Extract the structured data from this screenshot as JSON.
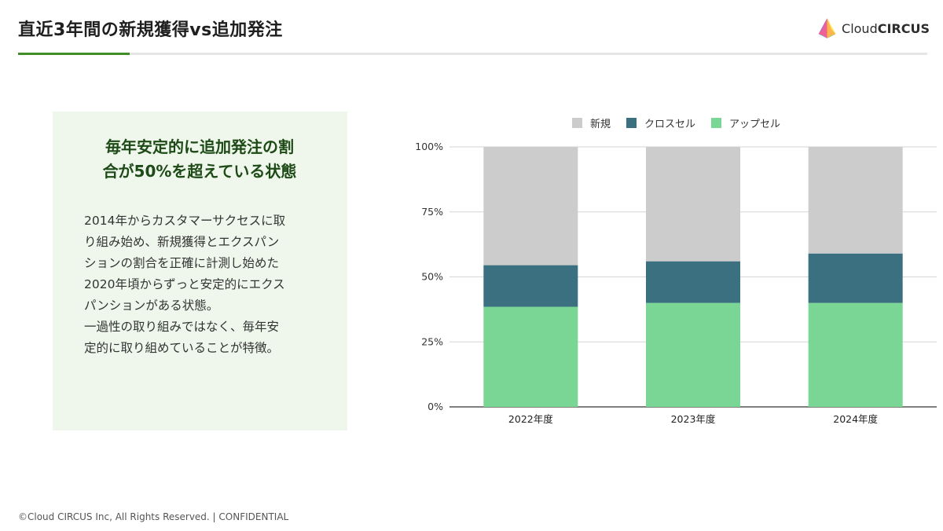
{
  "header": {
    "title": "直近3年間の新規獲得vs追加発注",
    "logo_light": "Cloud",
    "logo_bold": "CIRCUS"
  },
  "panel": {
    "heading": "毎年安定的に追加発注の割\n合が50%を超えている状態",
    "body": "2014年からカスタマーサクセスに取\nり組み始め、新規獲得とエクスパン\nションの割合を正確に計測し始めた\n2020年頃からずっと安定的にエクス\nパンションがある状態。\n一過性の取り組みではなく、毎年安\n定的に取り組めていることが特徴。"
  },
  "footer": {
    "text": "©Cloud CIRCUS Inc, All Rights Reserved. | CONFIDENTIAL"
  },
  "colors": {
    "new": "#cccccc",
    "cross_sell": "#3a7080",
    "up_sell": "#7ad694",
    "accent": "#3f8e2a"
  },
  "chart_data": {
    "type": "bar",
    "stacked": true,
    "categories": [
      "2022年度",
      "2023年度",
      "2024年度"
    ],
    "series": [
      {
        "name": "アップセル",
        "values": [
          38.5,
          40,
          40
        ],
        "color": "#7ad694"
      },
      {
        "name": "クロスセル",
        "values": [
          16,
          16,
          19
        ],
        "color": "#3a7080"
      },
      {
        "name": "新規",
        "values": [
          45.5,
          44,
          41
        ],
        "color": "#cccccc"
      }
    ],
    "legend_order": [
      "新規",
      "クロスセル",
      "アップセル"
    ],
    "y_ticks": [
      "0%",
      "25%",
      "50%",
      "75%",
      "100%"
    ],
    "ylim": [
      0,
      100
    ],
    "grid": true,
    "legend_position": "top"
  }
}
